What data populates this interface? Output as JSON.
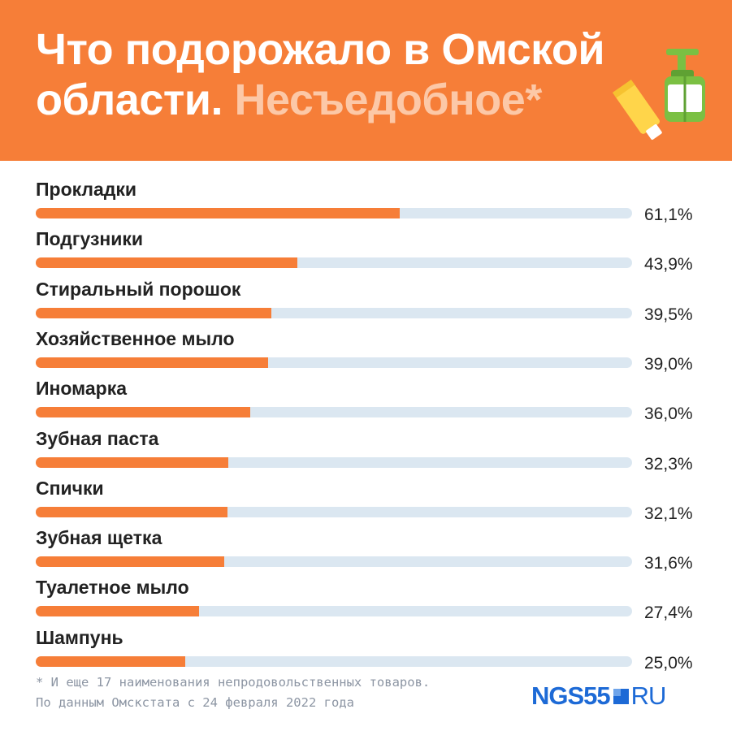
{
  "header": {
    "title_main": "Что подорожало в Омской области.",
    "title_highlight": "Несъедобное*",
    "icons": [
      "soap-dispenser-icon",
      "toothpaste-tube-icon"
    ]
  },
  "colors": {
    "accent": "#f67e38",
    "track": "#dbe7f1",
    "highlight": "#fcc8a7",
    "logo": "#1d6ad6"
  },
  "chart_data": {
    "type": "bar",
    "orientation": "horizontal",
    "title": "Что подорожало в Омской области. Несъедобное*",
    "categories": [
      "Прокладки",
      "Подгузники",
      "Стиральный порошок",
      "Хозяйственное мыло",
      "Иномарка",
      "Зубная паста",
      "Спички",
      "Зубная щетка",
      "Туалетное мыло",
      "Шампунь"
    ],
    "values": [
      61.1,
      43.9,
      39.5,
      39.0,
      36.0,
      32.3,
      32.1,
      31.6,
      27.4,
      25.0
    ],
    "value_labels": [
      "61,1%",
      "43,9%",
      "39,5%",
      "39,0%",
      "36,0%",
      "32,3%",
      "32,1%",
      "31,6%",
      "27,4%",
      "25,0%"
    ],
    "unit": "%",
    "xlim": [
      0,
      100
    ],
    "grid": false
  },
  "footer": {
    "note_line1": "* И еще 17 наименования непродовольственных товаров.",
    "note_line2": "По данным Омскстата с 24 февраля 2022 года",
    "logo_ngs": "NGS55",
    "logo_ru": "RU"
  }
}
